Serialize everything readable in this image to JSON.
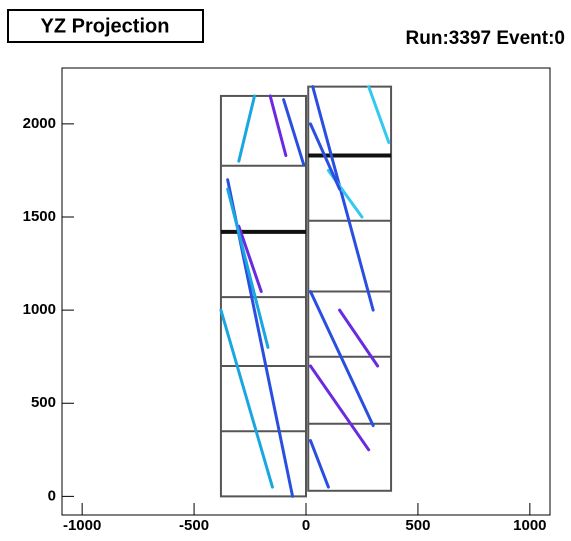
{
  "chart_data": {
    "type": "event-display",
    "title": "YZ Projection",
    "subtitle": "Run:3397 Event:0",
    "xlim": [
      -1090,
      1090
    ],
    "ylim": [
      -100,
      2300
    ],
    "xticks": [
      -1000,
      -500,
      0,
      500,
      1000
    ],
    "yticks": [
      0,
      500,
      1000,
      1500,
      2000
    ],
    "modules": [
      {
        "xlim": [
          -380,
          0
        ],
        "ylim": [
          0,
          2150
        ],
        "dividers": [
          1775,
          1070,
          700,
          350
        ],
        "heavy_dividers": [
          1420
        ]
      },
      {
        "xlim": [
          10,
          380
        ],
        "ylim": [
          30,
          2200
        ],
        "dividers": [
          1480,
          1100,
          750,
          390
        ],
        "heavy_dividers": [
          1830
        ]
      }
    ],
    "tracks": [
      {
        "color": "#1aa6e0",
        "x": [
          -230,
          -300
        ],
        "y": [
          2150,
          1800
        ]
      },
      {
        "color": "#2a4fe0",
        "x": [
          -100,
          -10
        ],
        "y": [
          2130,
          1780
        ]
      },
      {
        "color": "#6a2be0",
        "x": [
          -160,
          -90
        ],
        "y": [
          2150,
          1830
        ]
      },
      {
        "color": "#2a4fe0",
        "x": [
          -350,
          -60
        ],
        "y": [
          1700,
          0
        ]
      },
      {
        "color": "#1aa6e0",
        "x": [
          -380,
          -150
        ],
        "y": [
          1000,
          50
        ]
      },
      {
        "color": "#6a2be0",
        "x": [
          -300,
          -200
        ],
        "y": [
          1450,
          1100
        ]
      },
      {
        "color": "#1aa6e0",
        "x": [
          -350,
          -170
        ],
        "y": [
          1650,
          800
        ]
      },
      {
        "color": "#2a4fe0",
        "x": [
          30,
          300
        ],
        "y": [
          2200,
          1000
        ]
      },
      {
        "color": "#33c8ee",
        "x": [
          280,
          370
        ],
        "y": [
          2200,
          1900
        ]
      },
      {
        "color": "#2a4fe0",
        "x": [
          20,
          300
        ],
        "y": [
          1100,
          380
        ]
      },
      {
        "color": "#6a2be0",
        "x": [
          20,
          280
        ],
        "y": [
          700,
          250
        ]
      },
      {
        "color": "#33c8ee",
        "x": [
          100,
          250
        ],
        "y": [
          1750,
          1500
        ]
      },
      {
        "color": "#2a4fe0",
        "x": [
          20,
          150
        ],
        "y": [
          2000,
          1650
        ]
      },
      {
        "color": "#2a4fe0",
        "x": [
          20,
          100
        ],
        "y": [
          300,
          50
        ]
      },
      {
        "color": "#6a2be0",
        "x": [
          150,
          320
        ],
        "y": [
          1000,
          700
        ]
      }
    ]
  }
}
